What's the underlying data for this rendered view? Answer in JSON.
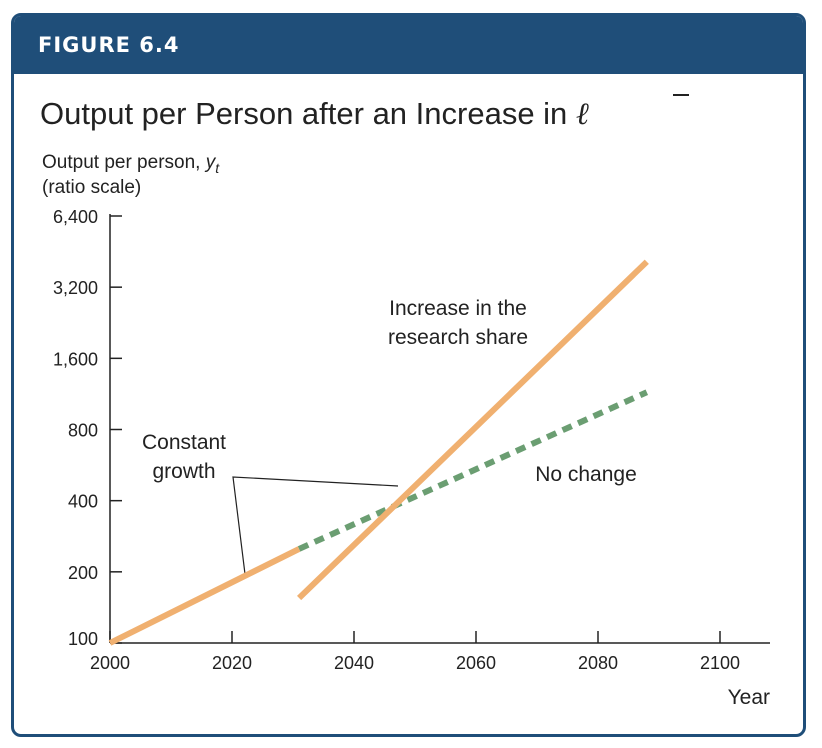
{
  "figure": {
    "label": "FIGURE 6.4",
    "title_prefix": "Output per Person after an Increase in ",
    "title_symbol": "ℓ"
  },
  "colors": {
    "frame": "#1f4e79",
    "header_bg": "#1f4e79",
    "orange_series": "#f0b070",
    "green_series": "#6b9e72",
    "axis": "#222222",
    "text": "#222222"
  },
  "chart_data": {
    "type": "line",
    "title": "Output per Person after an Increase in ℓ̄",
    "ylabel_line1": "Output per person, ",
    "ylabel_var": "y",
    "ylabel_sub": "t",
    "ylabel_line2": "(ratio scale)",
    "xlabel": "Year",
    "x_ticks": [
      2000,
      2020,
      2040,
      2060,
      2080,
      2100
    ],
    "x_tick_labels": [
      "2000",
      "2020",
      "2040",
      "2060",
      "2080",
      "2100"
    ],
    "y_ticks": [
      100,
      200,
      400,
      800,
      1600,
      3200,
      6400
    ],
    "y_tick_labels": [
      "100",
      "200",
      "400",
      "800",
      "1,600",
      "3,200",
      "6,400"
    ],
    "y_scale": "log2",
    "xlim": [
      2000,
      2108
    ],
    "ylim": [
      100,
      6400
    ],
    "grid": false,
    "series": [
      {
        "key": "constant",
        "style": "solid",
        "color": "#f0b070",
        "x": [
          2000,
          2031
        ],
        "y": [
          100,
          250
        ]
      },
      {
        "key": "no_change",
        "style": "dashed",
        "color": "#6b9e72",
        "x": [
          2031,
          2088
        ],
        "y": [
          250,
          1150
        ]
      },
      {
        "key": "increase",
        "style": "solid",
        "color": "#f0b070",
        "x": [
          2031,
          2088
        ],
        "y": [
          155,
          4100
        ]
      }
    ],
    "annotations": {
      "constant_line1": "Constant",
      "constant_line2": "growth",
      "increase_line1": "Increase in the",
      "increase_line2": "research share",
      "no_change": "No change"
    }
  }
}
